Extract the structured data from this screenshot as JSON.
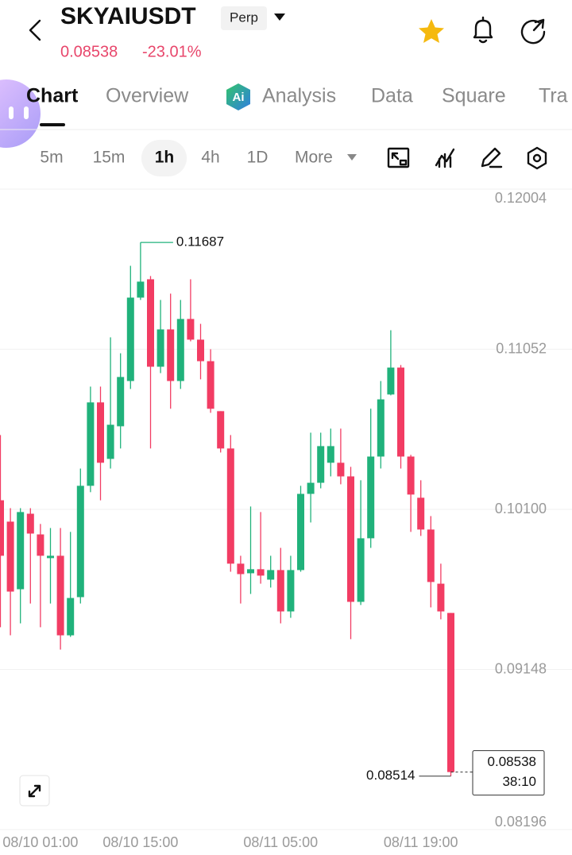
{
  "header": {
    "symbol": "SKYAIUSDT",
    "badge": "Perp",
    "price": "0.08538",
    "change": "-23.01%"
  },
  "tabs": [
    "Chart",
    "Overview",
    "Analysis",
    "Data",
    "Square",
    "Tra"
  ],
  "intervals": [
    "5m",
    "15m",
    "1h",
    "4h",
    "1D",
    "More"
  ],
  "chart_data": {
    "type": "candlestick",
    "categories": [
      null,
      null,
      null,
      null,
      "08/10 01:00",
      null,
      null,
      null,
      null,
      null,
      null,
      null,
      null,
      null,
      "08/10 15:00",
      null,
      null,
      null,
      null,
      null,
      null,
      null,
      null,
      null,
      null,
      null,
      null,
      null,
      "08/11 05:00",
      null,
      null,
      null,
      null,
      null,
      null,
      null,
      null,
      null,
      null,
      null,
      null,
      null,
      "08/11 19:00",
      null,
      null,
      null
    ],
    "open": [
      0.10154,
      0.10027,
      0.09625,
      0.10074,
      0.09951,
      0.0981,
      0.09824,
      0.09351,
      0.09578,
      0.1024,
      0.10736,
      0.104,
      0.10594,
      0.10863,
      0.11359,
      0.11468,
      0.10948,
      0.1117,
      0.10863,
      0.11232,
      0.11109,
      0.10981,
      0.10684,
      0.10462,
      0.09777,
      0.0972,
      0.09744,
      0.09682,
      0.09739,
      0.09493,
      0.09739,
      0.10192,
      0.10258,
      0.10377,
      0.10377,
      0.10296,
      0.0955,
      0.09928,
      0.10414,
      0.10783,
      0.10943,
      0.10414,
      0.10169,
      0.0998,
      0.09658,
      0.09484
    ],
    "high": [
      0.10542,
      0.10107,
      0.10107,
      0.10107,
      0.10013,
      0.09989,
      0.09989,
      0.09966,
      0.10343,
      0.1083,
      0.1083,
      0.11123,
      0.11028,
      0.11548,
      0.11687,
      0.11487,
      0.11345,
      0.11383,
      0.11345,
      0.11468,
      0.11203,
      0.11052,
      0.10684,
      0.10542,
      0.09824,
      0.10117,
      0.10084,
      0.09824,
      0.09871,
      0.09824,
      0.1024,
      0.10556,
      0.10556,
      0.1058,
      0.1058,
      0.10353,
      0.10273,
      0.10698,
      0.10863,
      0.11165,
      0.10958,
      0.10424,
      0.10273,
      0.1006,
      0.09777,
      0.09484
    ],
    "low": [
      0.09399,
      0.09351,
      0.09422,
      0.0954,
      0.09399,
      0.0954,
      0.09266,
      0.09342,
      0.0954,
      0.10202,
      0.10154,
      0.10343,
      0.10462,
      0.10816,
      0.11345,
      0.10462,
      0.1091,
      0.10698,
      0.10816,
      0.11099,
      0.10873,
      0.10674,
      0.10438,
      0.09729,
      0.0954,
      0.09597,
      0.09658,
      0.09635,
      0.09422,
      0.09455,
      0.09729,
      0.10022,
      0.10225,
      0.10296,
      0.10249,
      0.09328,
      0.09531,
      0.09871,
      0.10343,
      0.10778,
      0.10343,
      0.09966,
      0.09942,
      0.09517,
      0.09446,
      0.08514
    ],
    "close": [
      0.09824,
      0.09611,
      0.10084,
      0.09956,
      0.09824,
      0.09824,
      0.09351,
      0.09573,
      0.1024,
      0.10736,
      0.10377,
      0.10603,
      0.10887,
      0.11359,
      0.11454,
      0.10948,
      0.1117,
      0.10863,
      0.11232,
      0.11109,
      0.10981,
      0.10698,
      0.10462,
      0.09777,
      0.09715,
      0.09744,
      0.09706,
      0.09739,
      0.09493,
      0.09739,
      0.10192,
      0.10258,
      0.10476,
      0.10476,
      0.10296,
      0.0955,
      0.09928,
      0.10414,
      0.10754,
      0.10943,
      0.10414,
      0.10188,
      0.0998,
      0.09668,
      0.09493,
      0.08538
    ],
    "up_color": "#20b27b",
    "down_color": "#f23c63",
    "ylim": [
      0.08196,
      0.12004
    ],
    "yticks": [
      0.12004,
      0.11052,
      {
        "value": 0.101,
        "label": "0.10100"
      },
      0.09148,
      0.08196
    ],
    "grid": true,
    "annotations": {
      "high": "0.11687",
      "low": "0.08514",
      "last": "0.08538",
      "countdown": "38:10"
    }
  }
}
